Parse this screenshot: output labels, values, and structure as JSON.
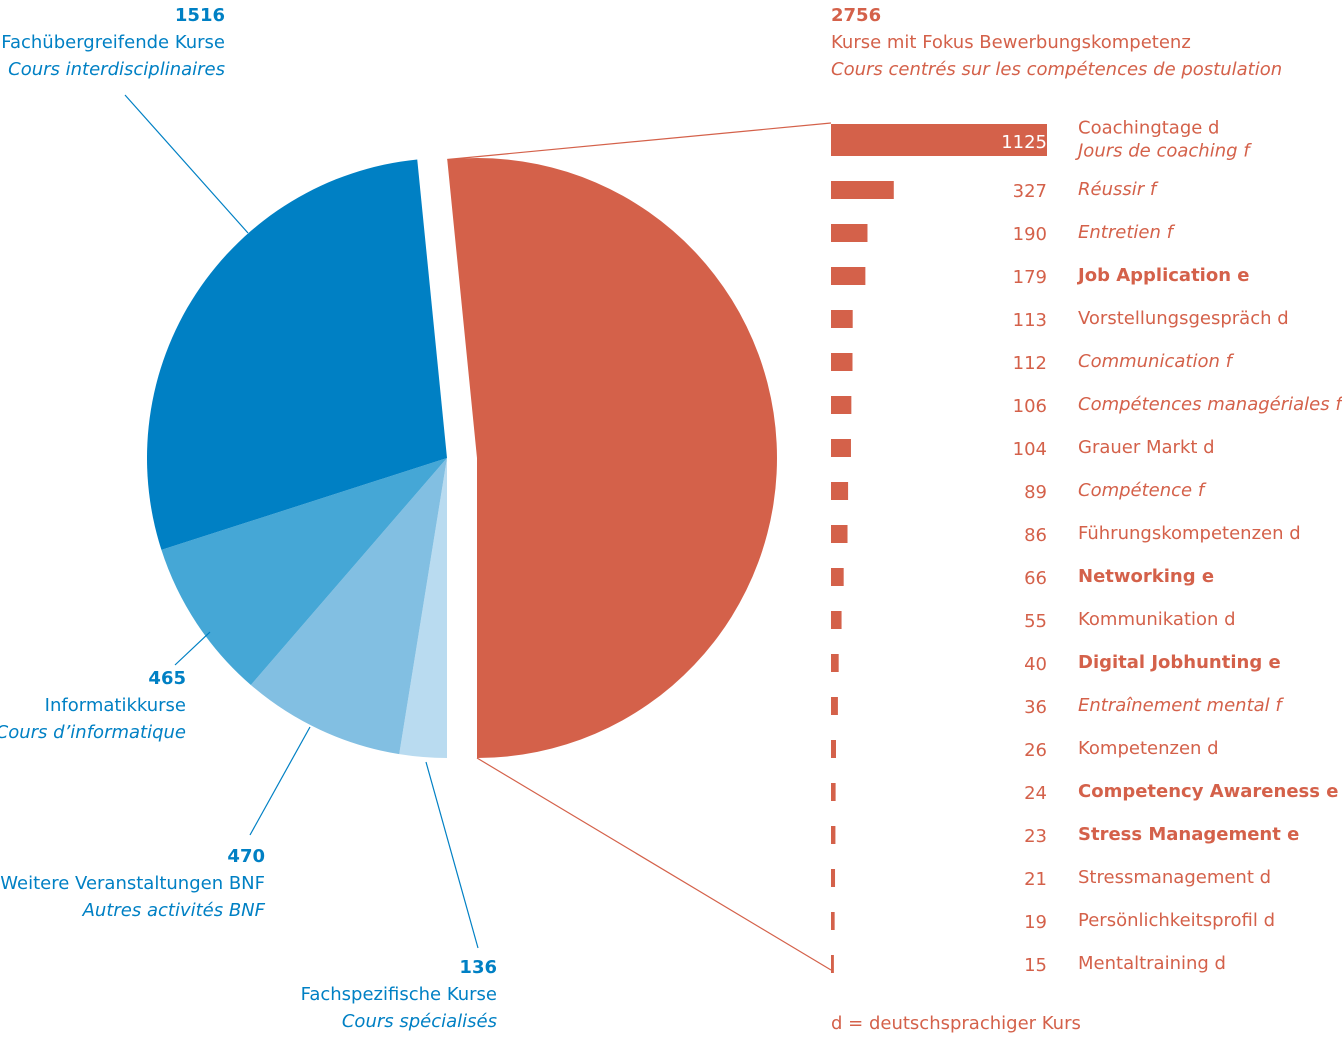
{
  "chart_data": {
    "type": "bar-of-pie",
    "pie": {
      "categories": [
        "Kurse mit Fokus Bewerbungskompetenz",
        "Fachspezifische Kurse",
        "Weitere Veranstaltungen BNF",
        "Informatikkurse",
        "Fachübergreifende Kurse"
      ],
      "subtitles": [
        "Cours centrés sur les compétences de postulation",
        "Cours spécialisés",
        "Autres activités BNF",
        "Cours d’informatique",
        "Cours interdisciplinaires"
      ],
      "values": [
        2756,
        136,
        470,
        465,
        1516
      ],
      "colors": [
        "#d4614a",
        "#b9dbf0",
        "#82bfe2",
        "#45a7d6",
        "#0080c4"
      ]
    },
    "bars": {
      "categories": [
        "Coachingtage d\nJours de coaching f",
        "Réussir f",
        "Entretien f",
        "Job Application e",
        "Vorstellungsgespräch d",
        "Communication f",
        "Compétences managériales f",
        "Grauer Markt d",
        "Compétence f",
        "Führungskompetenzen d",
        "Networking e",
        "Kommunikation d",
        "Digital Jobhunting e",
        "Entraînement mental f",
        "Kompetenzen d",
        "Competency Awareness e",
        "Stress Management e",
        "Stressmanagement d",
        "Persönlichkeitsprofil d",
        "Mentaltraining d"
      ],
      "values": [
        1125,
        327,
        190,
        179,
        113,
        112,
        106,
        104,
        89,
        86,
        66,
        55,
        40,
        36,
        26,
        24,
        23,
        21,
        19,
        15
      ],
      "color": "#d4614a"
    },
    "footnote": "d = deutschsprachiger Kurs"
  }
}
